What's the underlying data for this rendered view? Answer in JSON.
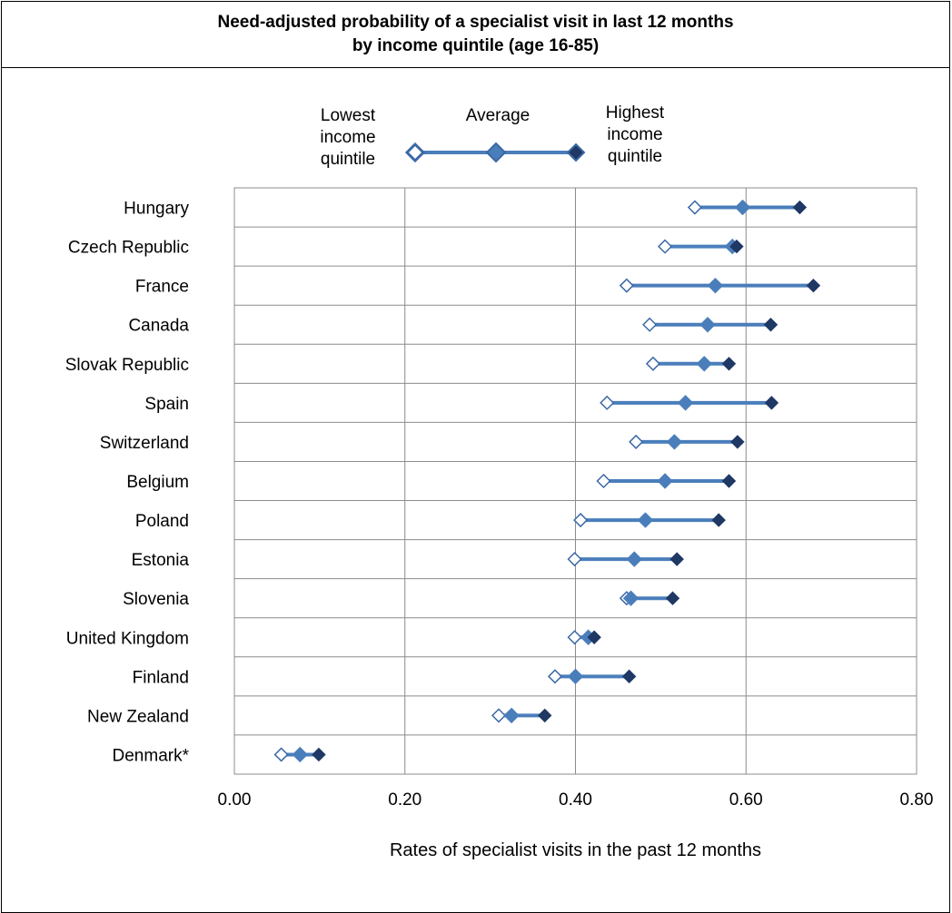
{
  "chart_data": {
    "type": "dot-range",
    "title": [
      "Need-adjusted probability of a specialist visit in last 12 months",
      "by income quintile (age 16-85)"
    ],
    "xlabel": "Rates of specialist visits in the past 12 months",
    "xlim": [
      0,
      0.8
    ],
    "xticks": [
      0,
      0.2,
      0.4,
      0.6,
      0.8
    ],
    "xtick_labels": [
      "0.00",
      "0.20",
      "0.40",
      "0.60",
      "0.80"
    ],
    "grid": "vertical-and-horizontal",
    "legend": {
      "placement": "top",
      "entries": [
        {
          "label": "Lowest income quintile",
          "lines": [
            "Lowest",
            "income",
            "quintile"
          ]
        },
        {
          "label": "Average",
          "lines": [
            "Average"
          ]
        },
        {
          "label": "Highest income quintile",
          "lines": [
            "Highest",
            "income",
            "quintile"
          ]
        }
      ]
    },
    "colors": {
      "lowest_fill": "#ffffff",
      "lowest_stroke": "#3b68a6",
      "average": "#4a7ebb",
      "highest": "#1f3864",
      "line": "#4a7ebb"
    },
    "categories": [
      "Hungary",
      "Czech Republic",
      "France",
      "Canada",
      "Slovak Republic",
      "Spain",
      "Switzerland",
      "Belgium",
      "Poland",
      "Estonia",
      "Slovenia",
      "United Kingdom",
      "Finland",
      "New Zealand",
      "Denmark*"
    ],
    "series": [
      {
        "name": "Lowest income quintile",
        "values": [
          0.54,
          0.505,
          0.46,
          0.487,
          0.491,
          0.437,
          0.471,
          0.433,
          0.406,
          0.399,
          0.46,
          0.399,
          0.376,
          0.31,
          0.055
        ]
      },
      {
        "name": "Average",
        "values": [
          0.596,
          0.584,
          0.564,
          0.555,
          0.551,
          0.529,
          0.516,
          0.505,
          0.482,
          0.469,
          0.465,
          0.415,
          0.4,
          0.325,
          0.077
        ]
      },
      {
        "name": "Highest income quintile",
        "values": [
          0.663,
          0.589,
          0.679,
          0.629,
          0.58,
          0.63,
          0.59,
          0.58,
          0.568,
          0.519,
          0.514,
          0.422,
          0.463,
          0.364,
          0.099
        ]
      }
    ]
  }
}
